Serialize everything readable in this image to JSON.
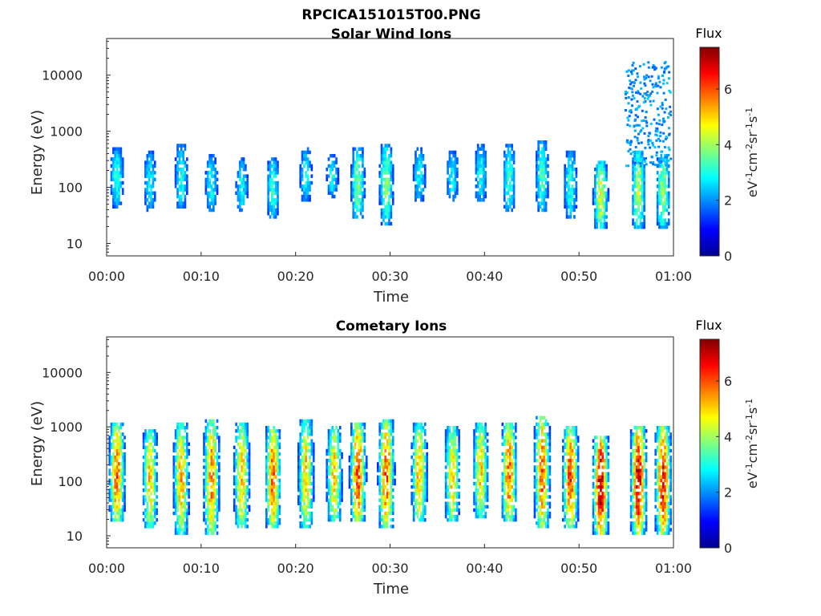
{
  "figure": {
    "title": "RPCICA151015T00.PNG"
  },
  "chart_data": [
    {
      "type": "heatmap",
      "title": "Solar Wind Ions",
      "xlabel": "Time",
      "ylabel": "Energy (eV)",
      "x_ticks": [
        "00:00",
        "00:10",
        "00:20",
        "00:30",
        "00:40",
        "00:50",
        "01:00"
      ],
      "x_range_minutes": [
        0,
        60
      ],
      "y_scale": "log",
      "y_ticks": [
        {
          "value": 10,
          "label": "10"
        },
        {
          "value": 100,
          "label": "100"
        },
        {
          "value": 1000,
          "label": "1000"
        },
        {
          "value": 10000,
          "label": "10000"
        }
      ],
      "y_range": [
        6,
        45000
      ],
      "colorbar": {
        "title": "Flux",
        "label": "eV-1cm-2sr-1s-1",
        "range": [
          0,
          7.5
        ],
        "ticks": [
          0,
          2,
          4,
          6
        ],
        "colormap": "jet"
      },
      "bursts": [
        {
          "t": 1.0,
          "elo": 50,
          "ehi": 450,
          "fpeak": 3.2
        },
        {
          "t": 4.5,
          "elo": 40,
          "ehi": 400,
          "fpeak": 2.8
        },
        {
          "t": 7.8,
          "elo": 45,
          "ehi": 550,
          "fpeak": 3.0
        },
        {
          "t": 11.0,
          "elo": 40,
          "ehi": 350,
          "fpeak": 2.9
        },
        {
          "t": 14.2,
          "elo": 40,
          "ehi": 300,
          "fpeak": 2.9
        },
        {
          "t": 17.5,
          "elo": 30,
          "ehi": 300,
          "fpeak": 3.2
        },
        {
          "t": 21.0,
          "elo": 60,
          "ehi": 450,
          "fpeak": 2.9
        },
        {
          "t": 23.8,
          "elo": 70,
          "ehi": 350,
          "fpeak": 2.8
        },
        {
          "t": 26.5,
          "elo": 30,
          "ehi": 450,
          "fpeak": 3.8
        },
        {
          "t": 29.5,
          "elo": 25,
          "ehi": 500,
          "fpeak": 3.8
        },
        {
          "t": 33.0,
          "elo": 60,
          "ehi": 450,
          "fpeak": 2.9
        },
        {
          "t": 36.5,
          "elo": 60,
          "ehi": 400,
          "fpeak": 2.8
        },
        {
          "t": 39.5,
          "elo": 60,
          "ehi": 500,
          "fpeak": 3.0
        },
        {
          "t": 42.5,
          "elo": 40,
          "ehi": 500,
          "fpeak": 3.2
        },
        {
          "t": 46.0,
          "elo": 40,
          "ehi": 600,
          "fpeak": 3.4
        },
        {
          "t": 49.0,
          "elo": 30,
          "ehi": 400,
          "fpeak": 3.2
        },
        {
          "t": 52.2,
          "elo": 20,
          "ehi": 250,
          "fpeak": 4.5
        },
        {
          "t": 56.2,
          "elo": 20,
          "ehi": 400,
          "fpeak": 4.2
        },
        {
          "t": 58.8,
          "elo": 20,
          "ehi": 350,
          "fpeak": 4.0
        }
      ]
    },
    {
      "type": "heatmap",
      "title": "Cometary Ions",
      "xlabel": "Time",
      "ylabel": "Energy (eV)",
      "x_ticks": [
        "00:00",
        "00:10",
        "00:20",
        "00:30",
        "00:40",
        "00:50",
        "01:00"
      ],
      "x_range_minutes": [
        0,
        60
      ],
      "y_scale": "log",
      "y_ticks": [
        {
          "value": 10,
          "label": "10"
        },
        {
          "value": 100,
          "label": "100"
        },
        {
          "value": 1000,
          "label": "1000"
        },
        {
          "value": 10000,
          "label": "10000"
        }
      ],
      "y_range": [
        6,
        45000
      ],
      "colorbar": {
        "title": "Flux",
        "label": "eV-1cm-2sr-1s-1",
        "range": [
          0,
          7.5
        ],
        "ticks": [
          0,
          2,
          4,
          6
        ],
        "colormap": "jet"
      },
      "bursts": [
        {
          "t": 1.0,
          "elo": 20,
          "ehi": 1000,
          "fpeak": 5.8
        },
        {
          "t": 4.5,
          "elo": 15,
          "ehi": 800,
          "fpeak": 5.0
        },
        {
          "t": 7.8,
          "elo": 12,
          "ehi": 1000,
          "fpeak": 5.2
        },
        {
          "t": 11.0,
          "elo": 12,
          "ehi": 1200,
          "fpeak": 5.6
        },
        {
          "t": 14.2,
          "elo": 15,
          "ehi": 1000,
          "fpeak": 5.2
        },
        {
          "t": 17.5,
          "elo": 15,
          "ehi": 900,
          "fpeak": 5.8
        },
        {
          "t": 21.0,
          "elo": 15,
          "ehi": 1200,
          "fpeak": 5.0
        },
        {
          "t": 24.0,
          "elo": 20,
          "ehi": 900,
          "fpeak": 5.0
        },
        {
          "t": 26.5,
          "elo": 20,
          "ehi": 1000,
          "fpeak": 6.2
        },
        {
          "t": 29.5,
          "elo": 15,
          "ehi": 1200,
          "fpeak": 6.0
        },
        {
          "t": 33.0,
          "elo": 20,
          "ehi": 1000,
          "fpeak": 5.2
        },
        {
          "t": 36.5,
          "elo": 20,
          "ehi": 900,
          "fpeak": 5.0
        },
        {
          "t": 39.5,
          "elo": 25,
          "ehi": 1000,
          "fpeak": 5.0
        },
        {
          "t": 42.5,
          "elo": 20,
          "ehi": 1000,
          "fpeak": 5.8
        },
        {
          "t": 46.0,
          "elo": 15,
          "ehi": 1500,
          "fpeak": 5.8
        },
        {
          "t": 49.0,
          "elo": 15,
          "ehi": 900,
          "fpeak": 6.0
        },
        {
          "t": 52.2,
          "elo": 12,
          "ehi": 600,
          "fpeak": 7.0
        },
        {
          "t": 56.2,
          "elo": 12,
          "ehi": 900,
          "fpeak": 6.8
        },
        {
          "t": 58.8,
          "elo": 12,
          "ehi": 900,
          "fpeak": 6.5
        }
      ]
    }
  ]
}
